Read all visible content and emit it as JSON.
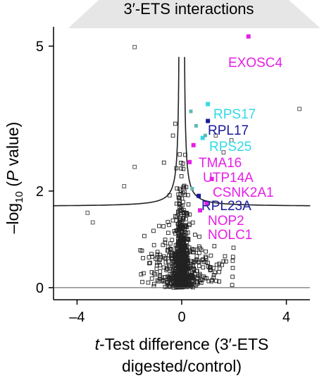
{
  "header": {
    "title": "3′-ETS interactions"
  },
  "chart_data": {
    "type": "scatter",
    "title": "3′-ETS interactions",
    "xlabel_italic": "t",
    "xlabel_rest": "-Test difference (3′-ETS",
    "xlabel_line2": "digested/control)",
    "ylabel_prefix": "–log",
    "ylabel_sub": "10",
    "ylabel_open": " (",
    "ylabel_italic": "P",
    "ylabel_close": " value)",
    "xlim": [
      -4.9,
      4.9
    ],
    "ylim": [
      -0.25,
      5.4
    ],
    "x_ticks": [
      {
        "value": -4,
        "label": "–4"
      },
      {
        "value": 0,
        "label": "0"
      },
      {
        "value": 4,
        "label": "4"
      }
    ],
    "y_ticks": [
      {
        "value": 0,
        "label": "0"
      },
      {
        "value": 2,
        "label": "2"
      },
      {
        "value": 5,
        "label": "5"
      }
    ],
    "colors": {
      "magenta": "#e61ee6",
      "cyan": "#33d9e6",
      "navy": "#1a1a99",
      "teal": "#5fb8b0",
      "background_points": "#222222"
    },
    "highlighted_proteins": [
      {
        "name": "EXOSC4",
        "x": 2.55,
        "y": 5.2,
        "color": "#e61ee6"
      },
      {
        "name": "RPS17",
        "x": 1.0,
        "y": 3.8,
        "color": "#33d9e6"
      },
      {
        "name": "RPL17",
        "x": 1.0,
        "y": 3.45,
        "color": "#1a1a99"
      },
      {
        "name": "RPS25",
        "x": 0.8,
        "y": 3.1,
        "color": "#33d9e6"
      },
      {
        "name": "TMA16",
        "x": 0.45,
        "y": 2.95,
        "color": "#e61ee6"
      },
      {
        "name": "UTP14A",
        "x": 0.3,
        "y": 2.6,
        "color": "#e61ee6"
      },
      {
        "name": "CSNK2A1",
        "x": 1.15,
        "y": 2.25,
        "color": "#e61ee6"
      },
      {
        "name": "RPL23A",
        "x": 0.65,
        "y": 1.9,
        "color": "#1a1a99"
      },
      {
        "name": "NOP2",
        "x": 0.95,
        "y": 1.75,
        "color": "#e61ee6"
      },
      {
        "name": "NOLC1",
        "x": 0.7,
        "y": 1.6,
        "color": "#e61ee6"
      }
    ],
    "background_points_count": 900
  }
}
